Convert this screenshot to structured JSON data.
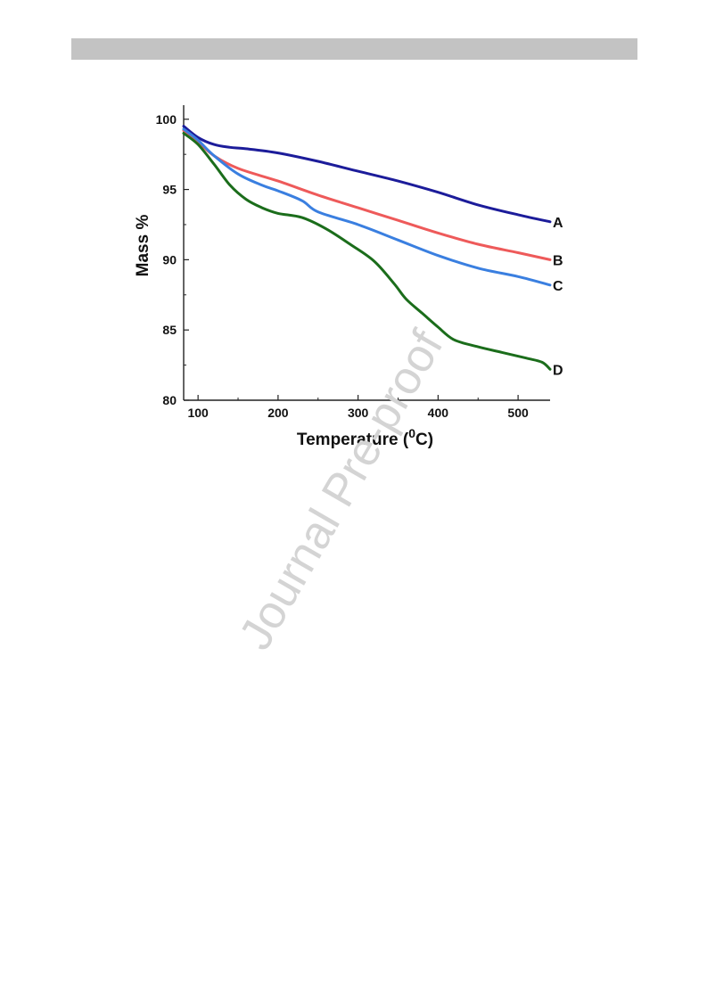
{
  "chart_data": {
    "type": "line",
    "xlabel": "Temperature (",
    "xlabel_sup": "0",
    "xlabel_unit": "C)",
    "ylabel": "Mass %",
    "xlim": [
      82,
      540
    ],
    "ylim": [
      80,
      101
    ],
    "xticks": [
      100,
      200,
      300,
      400,
      500
    ],
    "yticks": [
      80,
      85,
      90,
      95,
      100
    ],
    "grid": false,
    "series": [
      {
        "name": "A",
        "color": "#1c1c9a",
        "x": [
          82,
          100,
          120,
          140,
          160,
          200,
          250,
          300,
          350,
          400,
          450,
          500,
          540
        ],
        "y": [
          99.5,
          98.7,
          98.2,
          98.0,
          97.9,
          97.6,
          97.0,
          96.3,
          95.6,
          94.8,
          93.9,
          93.2,
          92.7
        ]
      },
      {
        "name": "B",
        "color": "#ee5a5a",
        "x": [
          82,
          100,
          120,
          150,
          200,
          250,
          300,
          350,
          400,
          450,
          500,
          540
        ],
        "y": [
          99.2,
          98.4,
          97.4,
          96.5,
          95.6,
          94.6,
          93.7,
          92.8,
          91.9,
          91.1,
          90.5,
          90.0
        ]
      },
      {
        "name": "C",
        "color": "#3a7fe0",
        "x": [
          82,
          100,
          120,
          150,
          180,
          200,
          230,
          250,
          300,
          350,
          400,
          450,
          500,
          540
        ],
        "y": [
          99.3,
          98.5,
          97.4,
          96.1,
          95.3,
          94.9,
          94.2,
          93.4,
          92.5,
          91.4,
          90.3,
          89.4,
          88.8,
          88.2
        ]
      },
      {
        "name": "D",
        "color": "#1b6d1b",
        "x": [
          82,
          100,
          120,
          140,
          160,
          180,
          200,
          230,
          260,
          290,
          320,
          345,
          360,
          380,
          400,
          420,
          450,
          480,
          510,
          530,
          540
        ],
        "y": [
          99.0,
          98.2,
          96.8,
          95.3,
          94.3,
          93.7,
          93.3,
          93.0,
          92.2,
          91.1,
          89.9,
          88.3,
          87.2,
          86.2,
          85.2,
          84.3,
          83.8,
          83.4,
          83.0,
          82.7,
          82.2
        ]
      }
    ]
  },
  "watermark": "Journal Pre-proof"
}
